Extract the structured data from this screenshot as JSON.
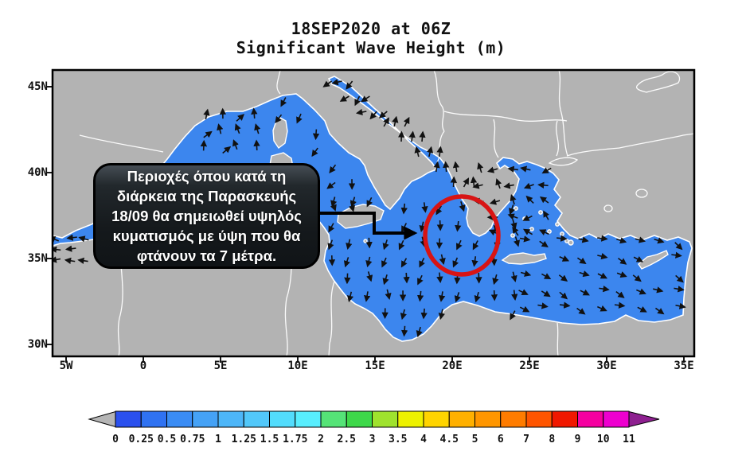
{
  "title": {
    "line1": "18SEP2020 at 06Z",
    "line2": "Significant Wave Height (m)"
  },
  "axes": {
    "y_labels": [
      "45N",
      "40N",
      "35N",
      "30N"
    ],
    "x_labels": [
      "5W",
      "0",
      "5E",
      "10E",
      "15E",
      "20E",
      "25E",
      "30E",
      "35E"
    ]
  },
  "annotation": {
    "lines": [
      "Περιοχές όπου κατά τη",
      "διάρκεια της Παρασκευής",
      "18/09 θα σημειωθεί υψηλός",
      "κυματισμός με ύψη που θα",
      "φτάνουν τα 7 μέτρα."
    ]
  },
  "colorbar": {
    "tick_labels": [
      "0",
      "0.25",
      "0.5",
      "0.75",
      "1",
      "1.25",
      "1.5",
      "1.75",
      "2",
      "2.5",
      "3",
      "3.5",
      "4",
      "4.5",
      "5",
      "6",
      "7",
      "8",
      "9",
      "10",
      "11"
    ],
    "cell_colors": [
      "#2a50ee",
      "#2f72f2",
      "#3a8cf4",
      "#45a2f6",
      "#4db6f8",
      "#52c8fa",
      "#52dcfc",
      "#58eefe",
      "#55e377",
      "#3ed84a",
      "#9fe22e",
      "#edf200",
      "#ffd400",
      "#ffb000",
      "#ff9600",
      "#ff7c00",
      "#ff5500",
      "#f01800",
      "#f500a0",
      "#ee00cf"
    ],
    "under_arrow_color": "#b5b5b5",
    "over_arrow_color": "#8e2090"
  },
  "map_colors": {
    "land": "#b3b3b3",
    "sea_base": "#3c86ee",
    "coastline": "#ffffff",
    "highlight_circle": "#d81414",
    "wave_arrows": "#111111"
  },
  "chart_data": {
    "type": "heatmap",
    "title": "Significant Wave Height (m)",
    "datetime": "18SEP2020 at 06Z",
    "lat_range": [
      "30N",
      "45N"
    ],
    "lon_range": [
      "5W",
      "35E"
    ],
    "colorbar_levels_m": [
      0,
      0.25,
      0.5,
      0.75,
      1,
      1.25,
      1.5,
      1.75,
      2,
      2.5,
      3,
      3.5,
      4,
      4.5,
      5,
      6,
      7,
      8,
      9,
      10,
      11
    ],
    "highlighted_peak": {
      "area": "Ionian Sea near 20E, 37N (circled)",
      "max_wave_height_m": 7
    }
  }
}
